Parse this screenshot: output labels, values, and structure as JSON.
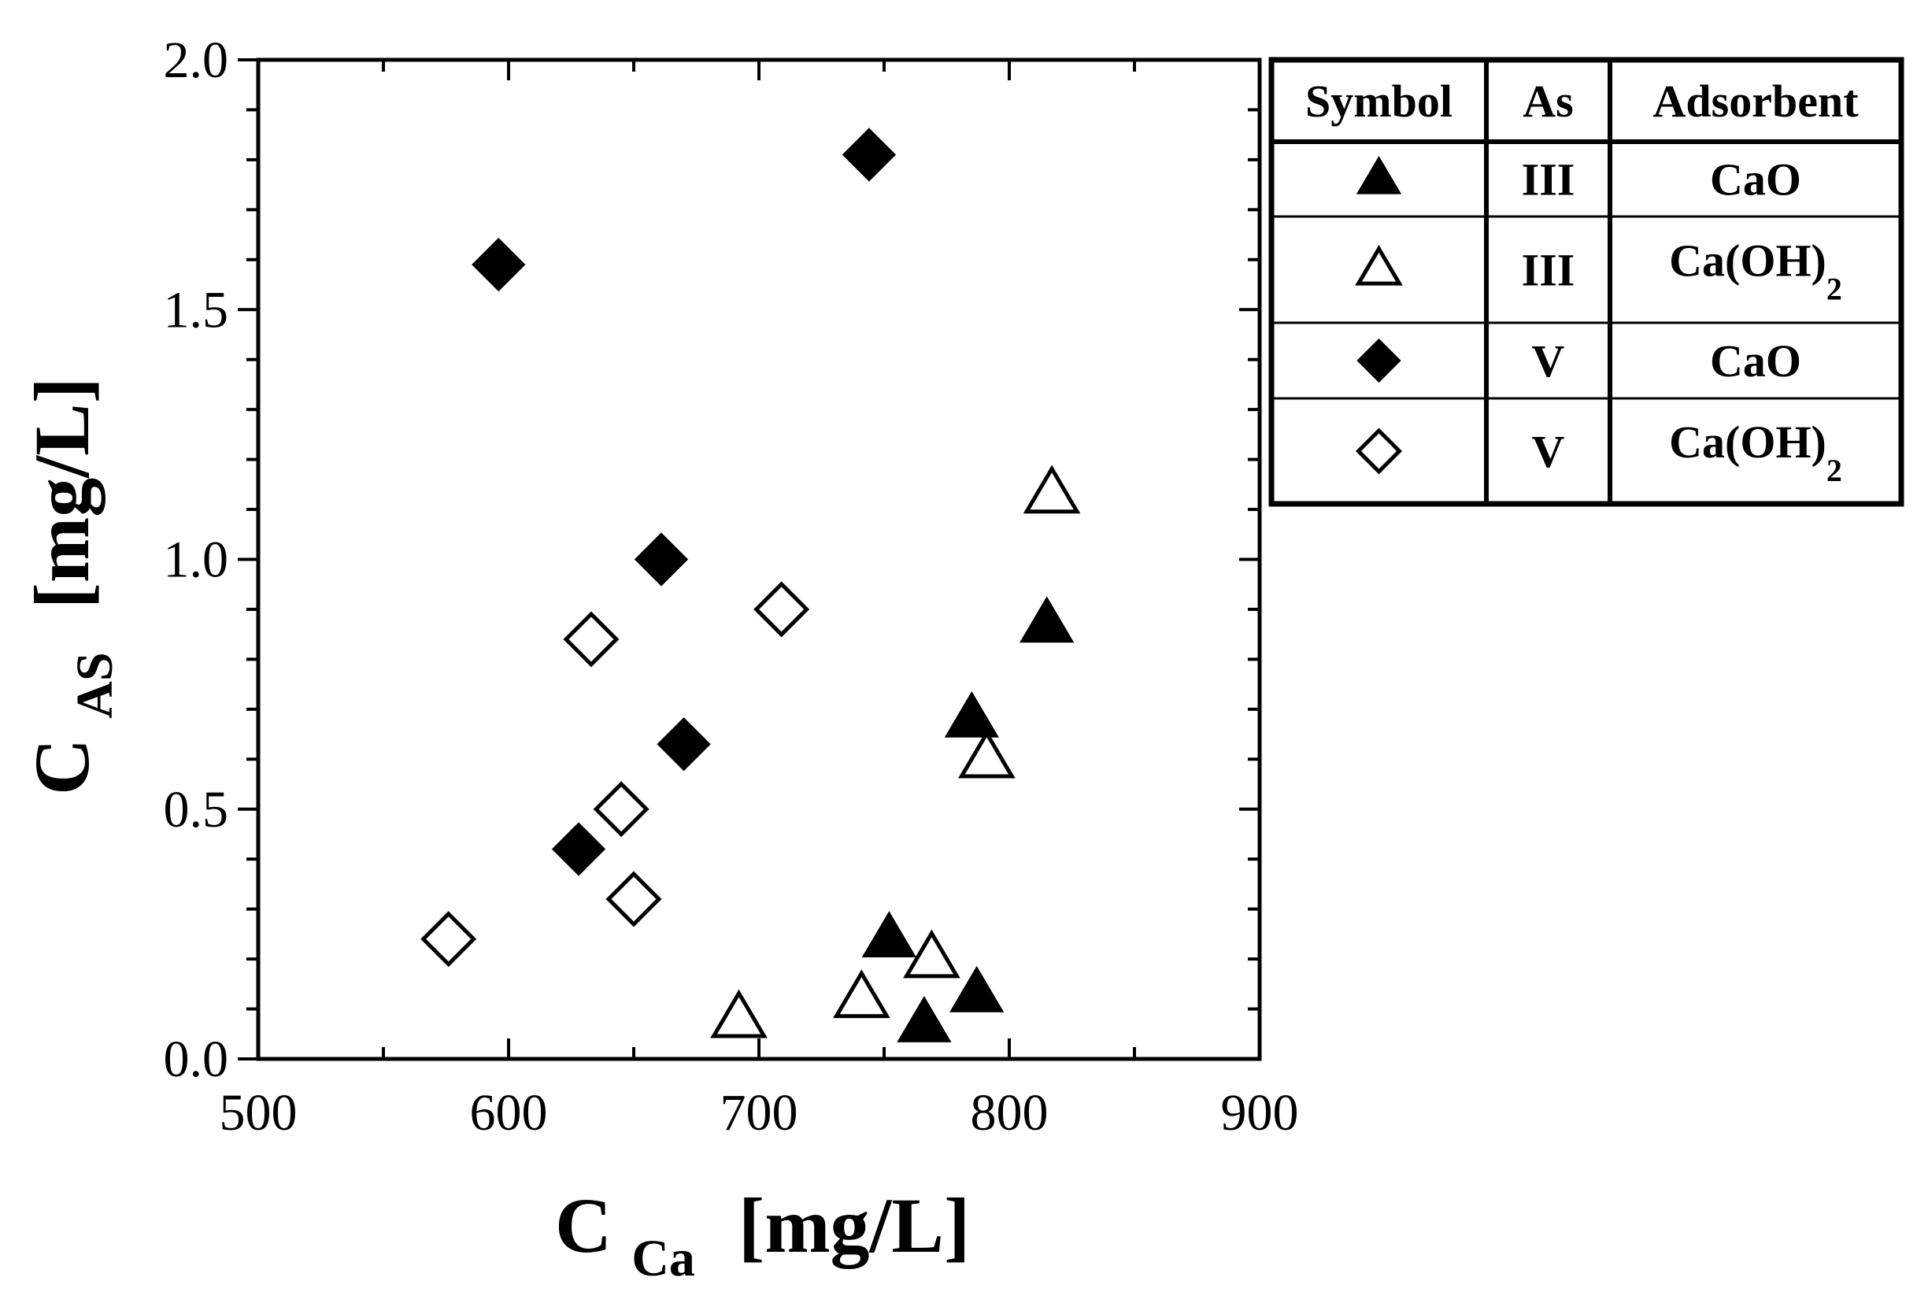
{
  "chart_data": {
    "type": "scatter",
    "title": "",
    "xlabel": {
      "main": "C",
      "sub": "Ca",
      "unit": "[mg/L]"
    },
    "ylabel": {
      "main": "C",
      "sub": "AS",
      "unit": "[mg/L]"
    },
    "xlim": [
      500,
      900
    ],
    "ylim": [
      0.0,
      2.0
    ],
    "x_ticks": [
      "500",
      "600",
      "700",
      "800",
      "900"
    ],
    "y_ticks": [
      "0.0",
      "0.5",
      "1.0",
      "1.5",
      "2.0"
    ],
    "grid": false,
    "legend_position": "top-right",
    "legend": {
      "headers": [
        "Symbol",
        "As",
        "Adsorbent"
      ],
      "rows": [
        {
          "marker": "triangle-filled",
          "as": "III",
          "adsorbent": "CaO",
          "adsorbent_sub": ""
        },
        {
          "marker": "triangle-open",
          "as": "III",
          "adsorbent": "Ca(OH)",
          "adsorbent_sub": "2"
        },
        {
          "marker": "diamond-filled",
          "as": "V",
          "adsorbent": "CaO",
          "adsorbent_sub": ""
        },
        {
          "marker": "diamond-open",
          "as": "V",
          "adsorbent": "Ca(OH)",
          "adsorbent_sub": "2"
        }
      ]
    },
    "series": [
      {
        "marker": "triangle-filled",
        "points": [
          [
            815,
            0.87
          ],
          [
            785,
            0.68
          ],
          [
            752,
            0.24
          ],
          [
            787,
            0.13
          ],
          [
            766,
            0.07
          ]
        ]
      },
      {
        "marker": "triangle-open",
        "points": [
          [
            817,
            1.13
          ],
          [
            791,
            0.6
          ],
          [
            769,
            0.2
          ],
          [
            741,
            0.12
          ],
          [
            692,
            0.08
          ]
        ]
      },
      {
        "marker": "diamond-filled",
        "points": [
          [
            744,
            1.81
          ],
          [
            596,
            1.59
          ],
          [
            661,
            1.0
          ],
          [
            670,
            0.63
          ],
          [
            628,
            0.42
          ]
        ]
      },
      {
        "marker": "diamond-open",
        "points": [
          [
            709,
            0.9
          ],
          [
            633,
            0.84
          ],
          [
            645,
            0.5
          ],
          [
            650,
            0.32
          ],
          [
            576,
            0.24
          ]
        ]
      }
    ]
  }
}
